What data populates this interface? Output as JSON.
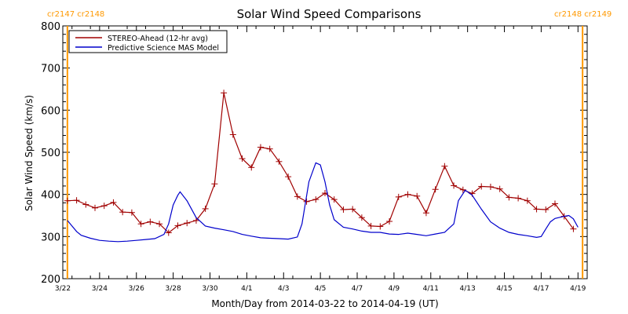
{
  "chart_data": {
    "type": "line",
    "title": "Solar Wind Speed Comparisons",
    "xlabel": "Month/Day from 2014-03-22 to 2014-04-19 (UT)",
    "ylabel": "Solar Wind Speed (km/s)",
    "xlim": [
      "2014-03-22",
      "2014-04-19 12:00"
    ],
    "ylim": [
      200,
      800
    ],
    "y_ticks": [
      200,
      300,
      400,
      500,
      600,
      700,
      800
    ],
    "x_tick_dates": [
      "2014-03-22",
      "2014-03-24",
      "2014-03-26",
      "2014-03-28",
      "2014-03-30",
      "2014-04-01",
      "2014-04-03",
      "2014-04-05",
      "2014-04-07",
      "2014-04-09",
      "2014-04-11",
      "2014-04-13",
      "2014-04-15",
      "2014-04-17",
      "2014-04-19"
    ],
    "x_tick_labels": [
      "3/22",
      "3/24",
      "3/26",
      "3/28",
      "3/30",
      "4/1",
      "4/3",
      "4/5",
      "4/7",
      "4/9",
      "4/11",
      "4/13",
      "4/15",
      "4/17",
      "4/19"
    ],
    "legend": {
      "placement": "top-left"
    },
    "carrington_markers": [
      {
        "date": "2014-03-22 06:00",
        "left_label": "cr2147",
        "right_label": "cr2148",
        "color": "#ff9900"
      },
      {
        "date": "2014-04-19 06:00",
        "left_label": "cr2148",
        "right_label": "cr2149",
        "color": "#ff9900"
      }
    ],
    "series": [
      {
        "name": "STEREO-Ahead (12-hr avg)",
        "color": "#a00000",
        "marker": "plus",
        "points": [
          [
            "2014-03-22 06:00",
            385
          ],
          [
            "2014-03-22 18:00",
            386
          ],
          [
            "2014-03-23 06:00",
            376
          ],
          [
            "2014-03-23 18:00",
            368
          ],
          [
            "2014-03-24 06:00",
            373
          ],
          [
            "2014-03-24 18:00",
            381
          ],
          [
            "2014-03-25 06:00",
            358
          ],
          [
            "2014-03-25 18:00",
            357
          ],
          [
            "2014-03-26 06:00",
            330
          ],
          [
            "2014-03-26 18:00",
            335
          ],
          [
            "2014-03-27 06:00",
            330
          ],
          [
            "2014-03-27 18:00",
            309
          ],
          [
            "2014-03-28 06:00",
            326
          ],
          [
            "2014-03-28 18:00",
            332
          ],
          [
            "2014-03-29 06:00",
            338
          ],
          [
            "2014-03-29 18:00",
            366
          ],
          [
            "2014-03-30 06:00",
            425
          ],
          [
            "2014-03-30 18:00",
            641
          ],
          [
            "2014-03-31 06:00",
            542
          ],
          [
            "2014-03-31 18:00",
            485
          ],
          [
            "2014-04-01 06:00",
            464
          ],
          [
            "2014-04-01 18:00",
            512
          ],
          [
            "2014-04-02 06:00",
            508
          ],
          [
            "2014-04-02 18:00",
            478
          ],
          [
            "2014-04-03 06:00",
            442
          ],
          [
            "2014-04-03 18:00",
            395
          ],
          [
            "2014-04-04 06:00",
            383
          ],
          [
            "2014-04-04 18:00",
            388
          ],
          [
            "2014-04-05 06:00",
            403
          ],
          [
            "2014-04-05 18:00",
            388
          ],
          [
            "2014-04-06 06:00",
            364
          ],
          [
            "2014-04-06 18:00",
            365
          ],
          [
            "2014-04-07 06:00",
            345
          ],
          [
            "2014-04-07 18:00",
            325
          ],
          [
            "2014-04-08 06:00",
            324
          ],
          [
            "2014-04-08 18:00",
            336
          ],
          [
            "2014-04-09 06:00",
            394
          ],
          [
            "2014-04-09 18:00",
            400
          ],
          [
            "2014-04-10 06:00",
            396
          ],
          [
            "2014-04-10 18:00",
            356
          ],
          [
            "2014-04-11 06:00",
            412
          ],
          [
            "2014-04-11 18:00",
            467
          ],
          [
            "2014-04-12 06:00",
            421
          ],
          [
            "2014-04-12 18:00",
            411
          ],
          [
            "2014-04-13 06:00",
            402
          ],
          [
            "2014-04-13 18:00",
            419
          ],
          [
            "2014-04-14 06:00",
            418
          ],
          [
            "2014-04-14 18:00",
            413
          ],
          [
            "2014-04-15 06:00",
            393
          ],
          [
            "2014-04-15 18:00",
            391
          ],
          [
            "2014-04-16 06:00",
            385
          ],
          [
            "2014-04-16 18:00",
            365
          ],
          [
            "2014-04-17 06:00",
            364
          ],
          [
            "2014-04-17 18:00",
            378
          ],
          [
            "2014-04-18 06:00",
            348
          ],
          [
            "2014-04-18 18:00",
            318
          ]
        ]
      },
      {
        "name": "Predictive Science MAS Model",
        "color": "#0000cc",
        "marker": "none",
        "points": [
          [
            "2014-03-22 06:00",
            338
          ],
          [
            "2014-03-22 12:00",
            325
          ],
          [
            "2014-03-22 18:00",
            312
          ],
          [
            "2014-03-23 00:00",
            303
          ],
          [
            "2014-03-23 12:00",
            296
          ],
          [
            "2014-03-24 00:00",
            291
          ],
          [
            "2014-03-24 12:00",
            289
          ],
          [
            "2014-03-25 00:00",
            288
          ],
          [
            "2014-03-25 12:00",
            289
          ],
          [
            "2014-03-26 00:00",
            291
          ],
          [
            "2014-03-26 12:00",
            293
          ],
          [
            "2014-03-27 00:00",
            295
          ],
          [
            "2014-03-27 12:00",
            305
          ],
          [
            "2014-03-27 18:00",
            330
          ],
          [
            "2014-03-28 00:00",
            375
          ],
          [
            "2014-03-28 06:00",
            398
          ],
          [
            "2014-03-28 09:00",
            406
          ],
          [
            "2014-03-28 18:00",
            385
          ],
          [
            "2014-03-29 06:00",
            345
          ],
          [
            "2014-03-29 18:00",
            325
          ],
          [
            "2014-03-30 06:00",
            320
          ],
          [
            "2014-03-30 18:00",
            316
          ],
          [
            "2014-03-31 06:00",
            312
          ],
          [
            "2014-03-31 18:00",
            305
          ],
          [
            "2014-04-01 06:00",
            301
          ],
          [
            "2014-04-01 18:00",
            297
          ],
          [
            "2014-04-02 06:00",
            296
          ],
          [
            "2014-04-02 18:00",
            295
          ],
          [
            "2014-04-03 06:00",
            294
          ],
          [
            "2014-04-03 18:00",
            299
          ],
          [
            "2014-04-04 00:00",
            330
          ],
          [
            "2014-04-04 09:00",
            430
          ],
          [
            "2014-04-04 18:00",
            475
          ],
          [
            "2014-04-05 00:00",
            470
          ],
          [
            "2014-04-05 06:00",
            430
          ],
          [
            "2014-04-05 12:00",
            375
          ],
          [
            "2014-04-05 18:00",
            340
          ],
          [
            "2014-04-06 06:00",
            322
          ],
          [
            "2014-04-06 18:00",
            318
          ],
          [
            "2014-04-07 06:00",
            313
          ],
          [
            "2014-04-07 18:00",
            310
          ],
          [
            "2014-04-08 06:00",
            310
          ],
          [
            "2014-04-08 18:00",
            306
          ],
          [
            "2014-04-09 06:00",
            305
          ],
          [
            "2014-04-09 18:00",
            308
          ],
          [
            "2014-04-10 06:00",
            305
          ],
          [
            "2014-04-10 18:00",
            302
          ],
          [
            "2014-04-11 06:00",
            306
          ],
          [
            "2014-04-11 18:00",
            310
          ],
          [
            "2014-04-12 06:00",
            330
          ],
          [
            "2014-04-12 12:00",
            385
          ],
          [
            "2014-04-12 21:00",
            410
          ],
          [
            "2014-04-13 06:00",
            398
          ],
          [
            "2014-04-13 18:00",
            365
          ],
          [
            "2014-04-14 06:00",
            335
          ],
          [
            "2014-04-14 18:00",
            320
          ],
          [
            "2014-04-15 06:00",
            310
          ],
          [
            "2014-04-15 18:00",
            305
          ],
          [
            "2014-04-16 06:00",
            302
          ],
          [
            "2014-04-16 18:00",
            298
          ],
          [
            "2014-04-17 00:00",
            300
          ],
          [
            "2014-04-17 06:00",
            318
          ],
          [
            "2014-04-17 12:00",
            335
          ],
          [
            "2014-04-17 18:00",
            343
          ],
          [
            "2014-04-18 06:00",
            348
          ],
          [
            "2014-04-18 12:00",
            350
          ],
          [
            "2014-04-18 18:00",
            342
          ],
          [
            "2014-04-19 00:00",
            322
          ]
        ]
      }
    ]
  }
}
